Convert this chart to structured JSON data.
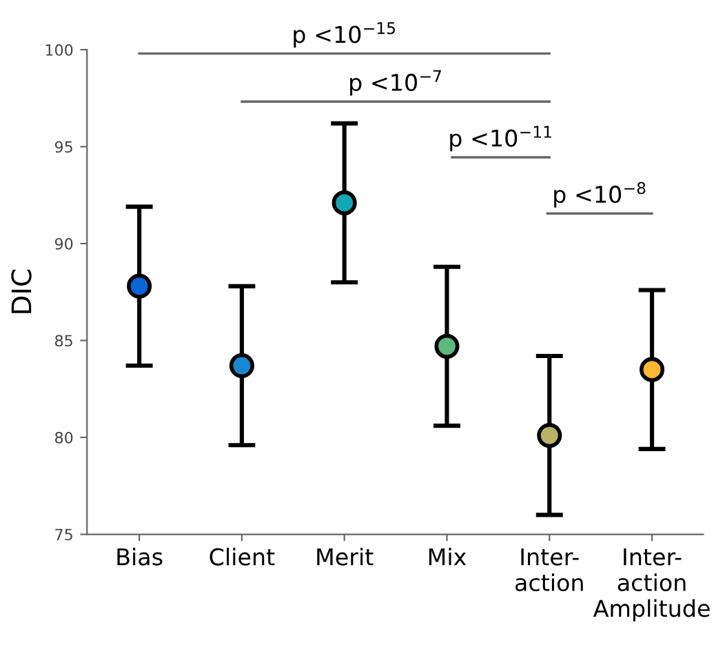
{
  "chart_data": {
    "type": "scatter",
    "ylabel": "DIC",
    "categories": [
      "Bias",
      "Client",
      "Merit",
      "Mix",
      "Inter-\naction",
      "Inter-\naction\nAmplitude"
    ],
    "values": [
      87.8,
      83.7,
      92.1,
      84.7,
      80.1,
      83.5
    ],
    "errors": [
      4.1,
      4.1,
      4.1,
      4.1,
      4.1,
      4.1
    ],
    "colors": [
      "#0a66d6",
      "#1a88d0",
      "#14a6b6",
      "#5cb87c",
      "#b8b265",
      "#fbb830"
    ],
    "ylim": [
      75,
      100
    ],
    "yticks": [
      75,
      80,
      85,
      90,
      95,
      100
    ],
    "marker": "circle",
    "grid": false,
    "annotations": [
      "p <10$^{−15}$",
      "p <10$^{−7}$",
      "p <10$^{−11}$",
      "p <10$^{−8}$"
    ]
  }
}
